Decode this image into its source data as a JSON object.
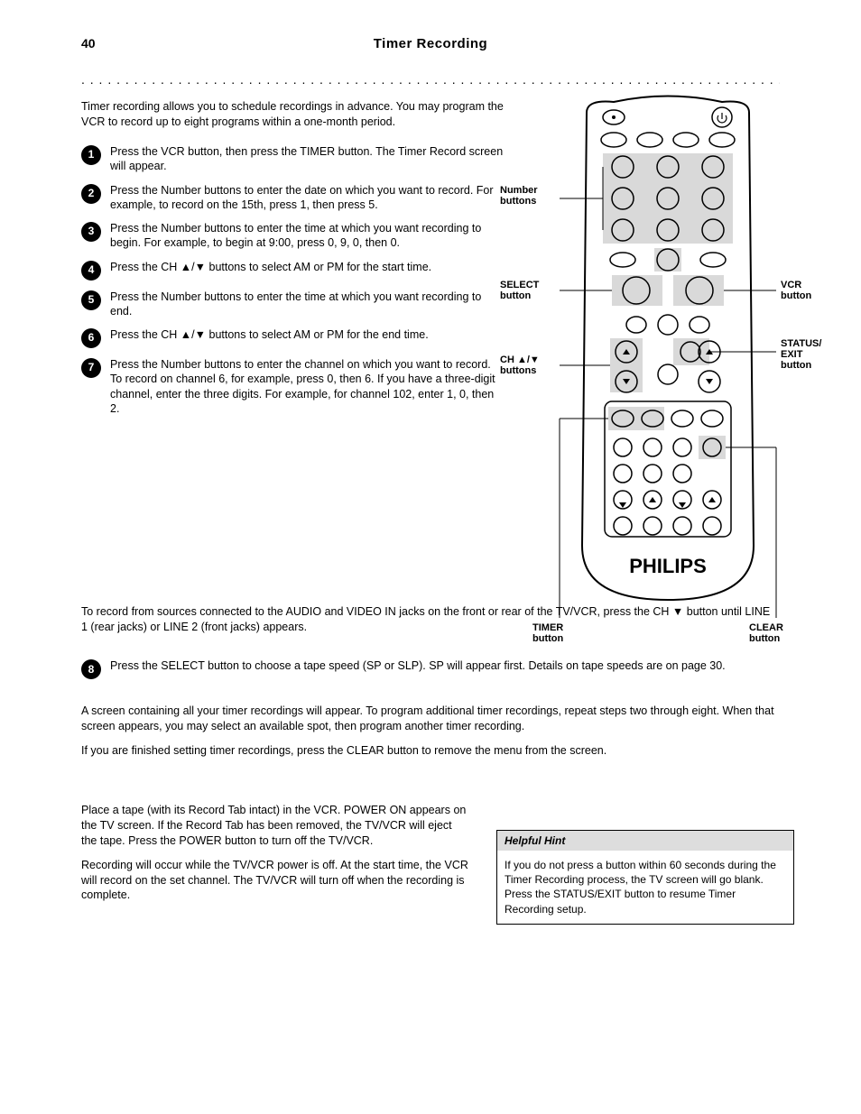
{
  "page": {
    "number": "40",
    "title": "Timer Recording"
  },
  "intro": "Timer recording allows you to schedule recordings in advance. You may program the VCR to record up to eight programs within a one-month period.",
  "steps": [
    {
      "num": "1",
      "text": "Press the VCR button, then press the TIMER button. The Timer Record screen will appear."
    },
    {
      "num": "2",
      "text": "Press the Number buttons to enter the date on which you want to record. For example, to record on the 15th, press 1, then press 5."
    },
    {
      "num": "3",
      "text": "Press the Number buttons to enter the time at which you want recording to begin. For example, to begin at 9:00, press 0, 9, 0, then 0."
    },
    {
      "num": "4",
      "text": "Press the CH ▲/▼ buttons to select AM or PM for the start time."
    },
    {
      "num": "5",
      "text": "Press the Number buttons to enter the time at which you want recording to end."
    },
    {
      "num": "6",
      "text": "Press the CH ▲/▼ buttons to select AM or PM for the end time."
    },
    {
      "num": "7",
      "text": "Press the Number buttons to enter the channel on which you want to record. To record on channel 6, for example, press 0, then 6. If you have a three-digit channel, enter the three digits. For example, for channel 102, enter 1, 0, then 2."
    }
  ],
  "line_in_note": "To record from sources connected to the AUDIO and VIDEO IN jacks on the front or rear of the TV/VCR, press the CH ▼ button until LINE 1 (rear jacks) or LINE 2 (front jacks) appears.",
  "step8": {
    "num": "8",
    "text": "Press the SELECT button to choose a tape speed (SP or SLP). SP will appear first. Details on tape speeds are on page 30."
  },
  "after": [
    "A screen containing all your timer recordings will appear. To program additional timer recordings, repeat steps two through eight. When that screen appears, you may select an available spot, then program another timer recording.",
    "If you are finished setting timer recordings, press the CLEAR button to remove the menu from the screen.",
    "Place a tape (with its Record Tab intact) in the VCR. POWER ON appears on the TV screen. If the Record Tab has been removed, the TV/VCR will eject the tape. Press the POWER button to turn off the TV/VCR.",
    "Recording will occur while the TV/VCR power is off. At the start time, the VCR will record on the set channel. The TV/VCR will turn off when the recording is complete."
  ],
  "hint": {
    "title": "Helpful Hint",
    "body": "If you do not press a button within 60 seconds during the Timer Recording process, the TV screen will go blank. Press the STATUS/EXIT button to resume Timer Recording setup."
  },
  "callouts": {
    "left_top": "Number\nbuttons",
    "left_mid": "SELECT\nbutton",
    "left_ch": "CH ▲/▼\nbuttons",
    "right_top": "VCR\nbutton",
    "right_mid": "STATUS/\nEXIT\nbutton",
    "bottom_left": "TIMER\nbutton",
    "bottom_right": "CLEAR\nbutton"
  },
  "remote": {
    "brand": "PHILIPS",
    "outline_color": "#000000",
    "highlight_color": "#d9d9d9",
    "background": "#ffffff"
  },
  "typography": {
    "body_fontsize": 12.5,
    "title_fontsize": 15,
    "step_circle_bg": "#000000",
    "step_circle_fg": "#ffffff"
  }
}
